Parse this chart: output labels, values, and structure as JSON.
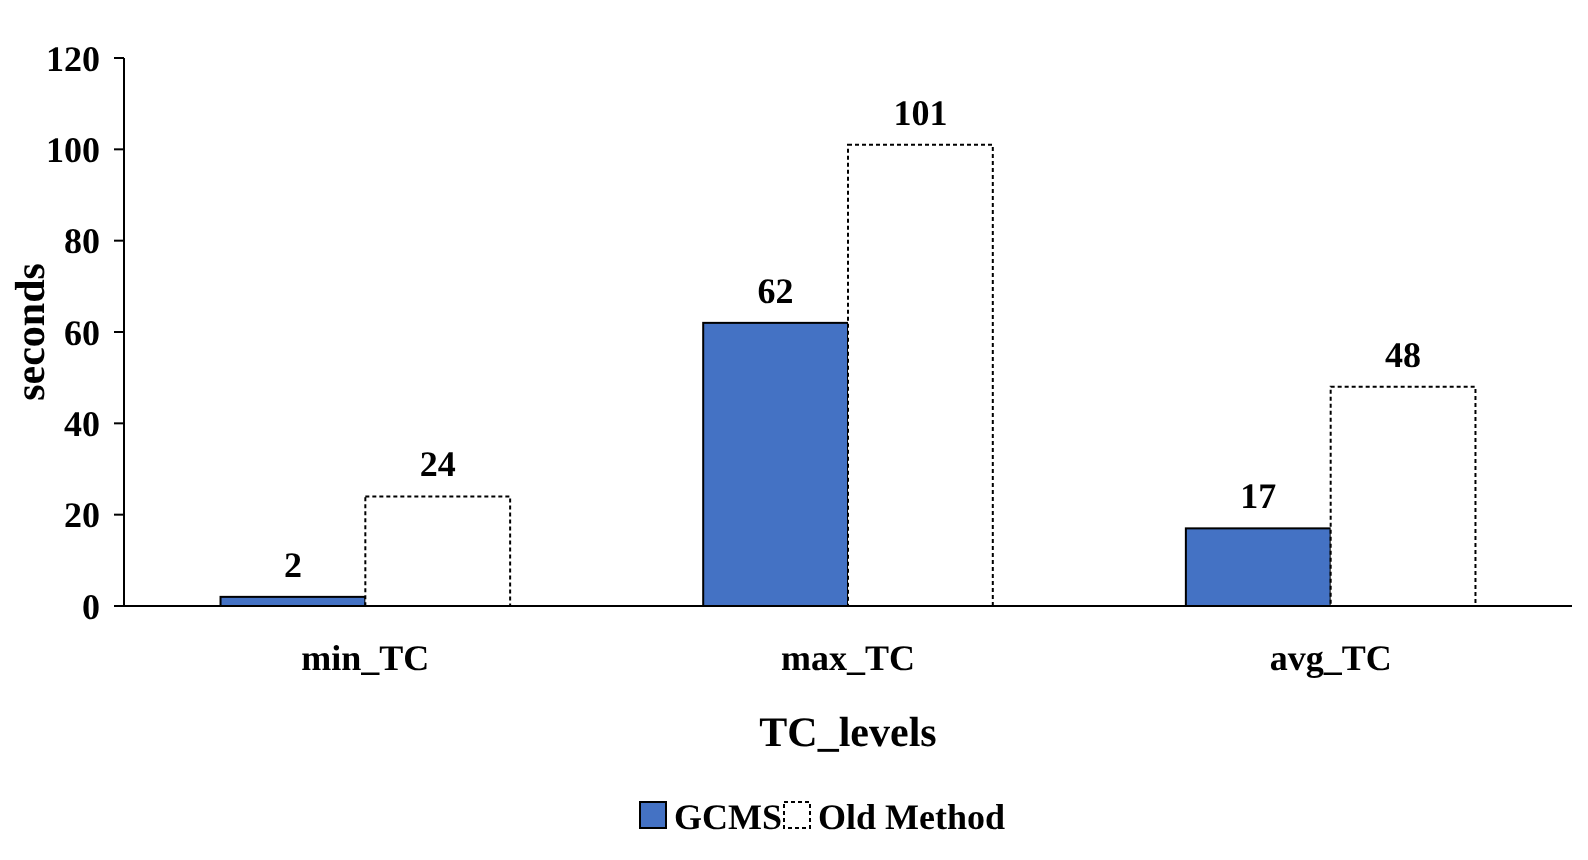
{
  "chart_data": {
    "type": "bar",
    "xlabel": "TC_levels",
    "ylabel": "seconds",
    "categories": [
      "min_TC",
      "max_TC",
      "avg_TC"
    ],
    "series": [
      {
        "name": "GCMS",
        "color": "#4472c4",
        "values": [
          2,
          62,
          17
        ]
      },
      {
        "name": "Old Method",
        "color": "#ffffff",
        "values": [
          24,
          101,
          48
        ]
      }
    ],
    "ylim": [
      0,
      120
    ],
    "yticks": [
      0,
      20,
      40,
      60,
      80,
      100,
      120
    ],
    "grid": false,
    "legend": "bottom",
    "data_labels": true
  }
}
